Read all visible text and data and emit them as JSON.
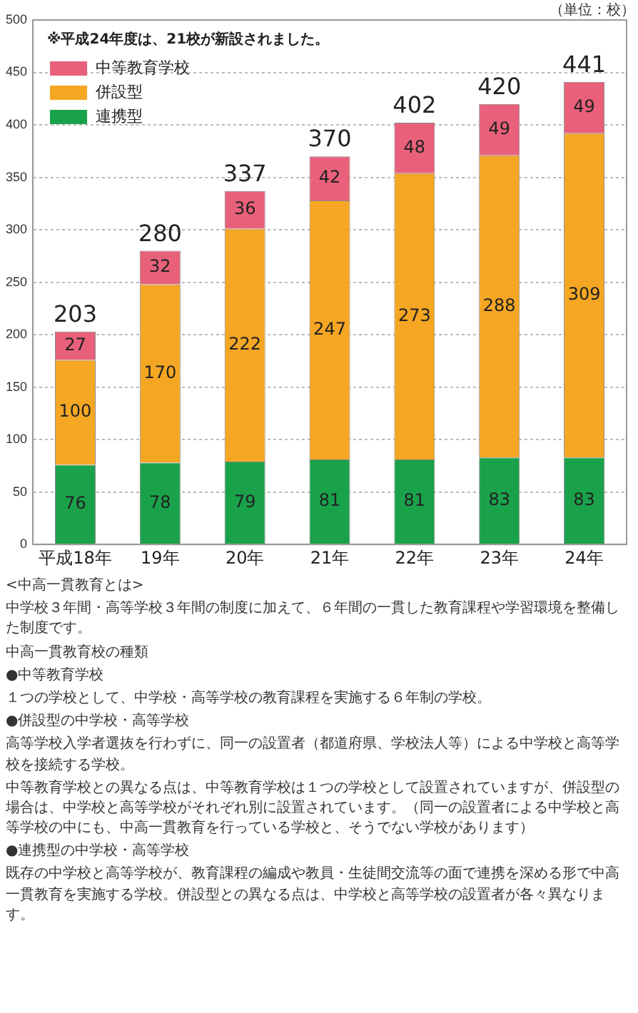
{
  "chart_data": {
    "type": "bar",
    "stacked": true,
    "categories": [
      "平成18年",
      "19年",
      "20年",
      "21年",
      "22年",
      "23年",
      "24年"
    ],
    "series": [
      {
        "name": "連携型",
        "color": "#1aa24a",
        "values": [
          76,
          78,
          79,
          81,
          81,
          83,
          83
        ]
      },
      {
        "name": "併設型",
        "color": "#f5a623",
        "values": [
          100,
          170,
          222,
          247,
          273,
          288,
          309
        ]
      },
      {
        "name": "中等教育学校",
        "color": "#e8607a",
        "values": [
          27,
          32,
          36,
          42,
          48,
          49,
          49
        ]
      }
    ],
    "ylim": [
      0,
      500
    ],
    "yticks": [
      0,
      50,
      100,
      150,
      200,
      250,
      300,
      350,
      400,
      450,
      500
    ],
    "grid": "y",
    "legend": "top left",
    "data_labels": true,
    "totals": [
      "203",
      "280",
      "337",
      "370",
      "402",
      "420",
      "441"
    ],
    "annotations": [
      "※平成24年度は、21校が新設されました。",
      "（単位：校）",
      "<中高一貫教育とは>",
      "中学校３年間・高等学校３年間の制度に加えて、６年間の一貫した教育課程や学習環境を整備した制度です。",
      "中高一貫教育校の種類",
      "●中等教育学校",
      "１つの学校として、中学校・高等学校の教育課程を実施する６年制の学校。",
      "●併設型の中学校・高等学校",
      "高等学校入学者選抜を行わずに、同一の設置者（都道府県、学校法人等）による中学校と高等学校を接続する学校。",
      "中等教育学校との異なる点は、中等教育学校は１つの学校として設置されていますが、併設型の場合は、中学校と高等学校がそれぞれ別に設置されています。（同一の設置者による中学校と高等学校の中にも、中高一貫教育を行っている学校と、そうでない学校があります）",
      "●連携型の中学校・高等学校",
      "既存の中学校と高等学校が、教育課程の編成や教員・生徒間交流等の面で連携を深める形で中高一貫教育を実施する学校。併設型との異なる点は、中学校と高等学校の設置者が各々異なります。"
    ]
  }
}
